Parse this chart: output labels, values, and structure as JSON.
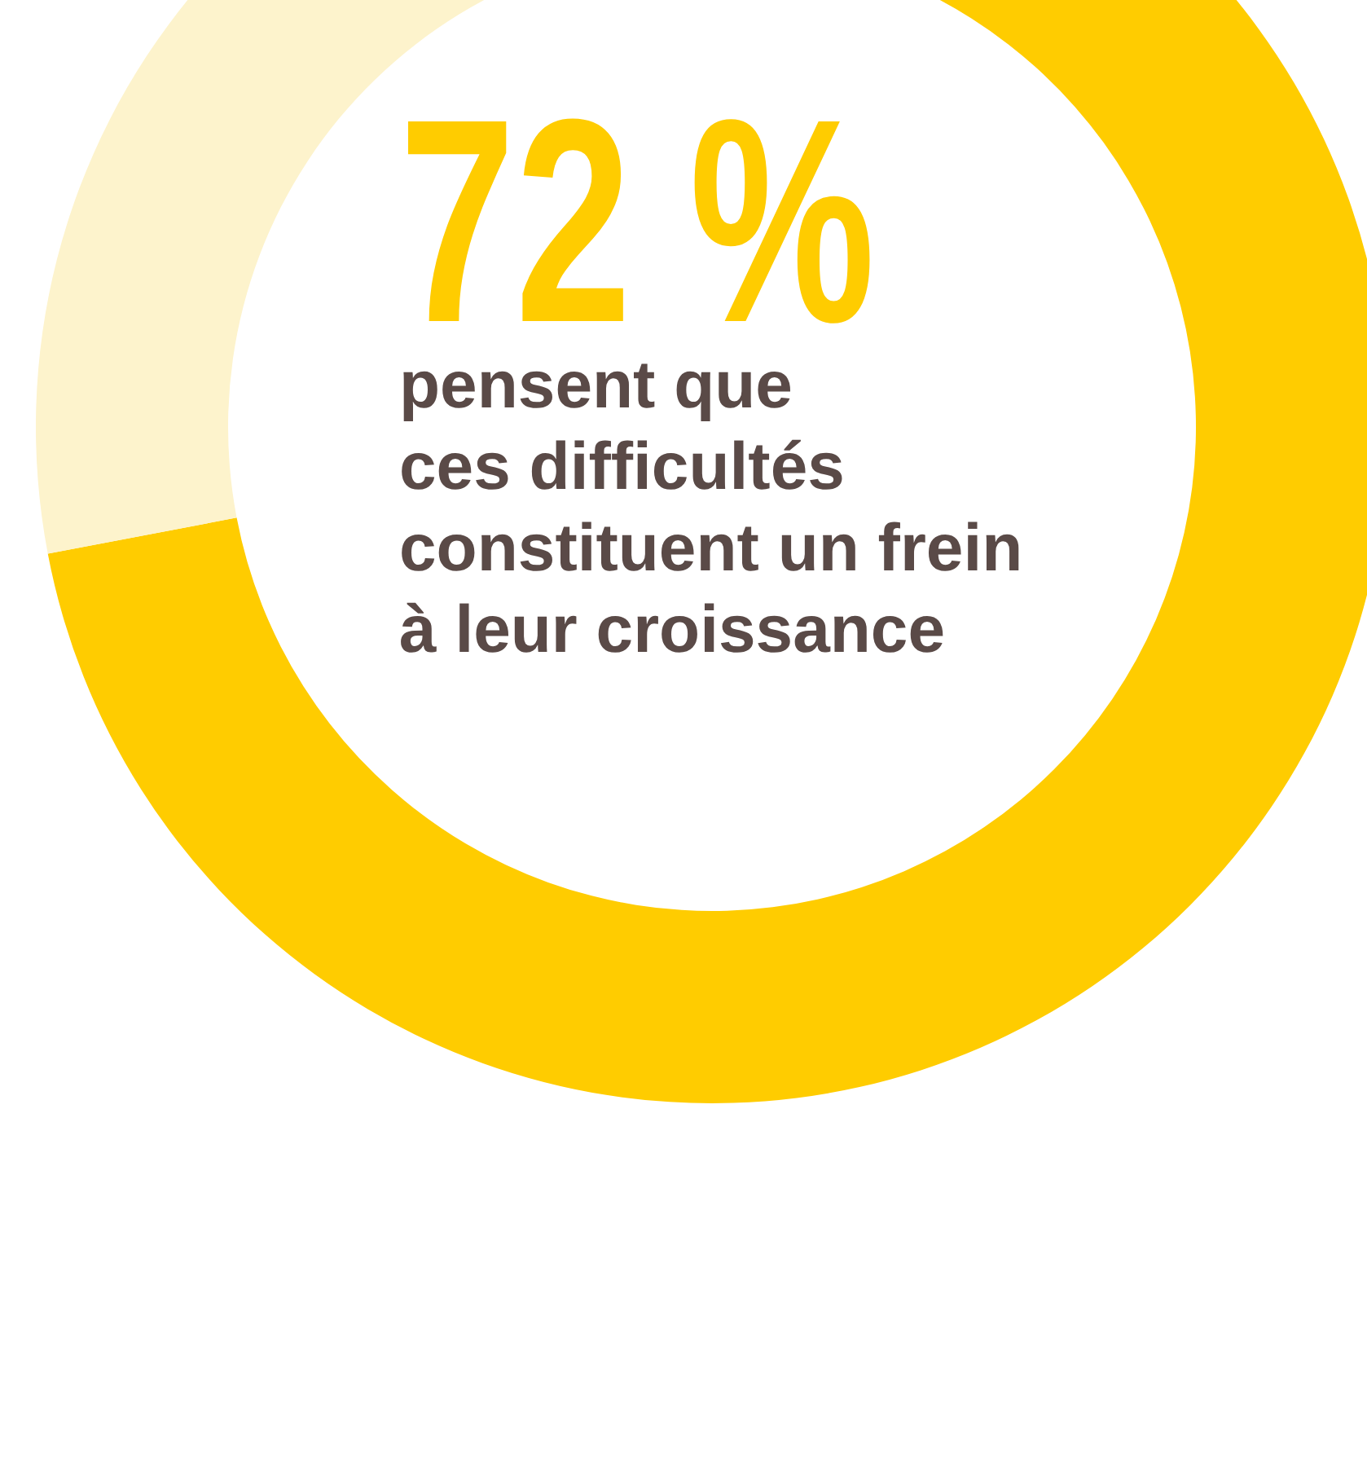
{
  "chart_data": {
    "type": "donut",
    "categories": [
      null,
      null
    ],
    "values": [
      72,
      28
    ],
    "colors": [
      "#ffcc00",
      "#fdf3cc"
    ],
    "title": "72 %",
    "annotations": [
      "pensent que",
      "ces difficultés",
      "constituent un frein",
      "à leur croissance"
    ]
  }
}
